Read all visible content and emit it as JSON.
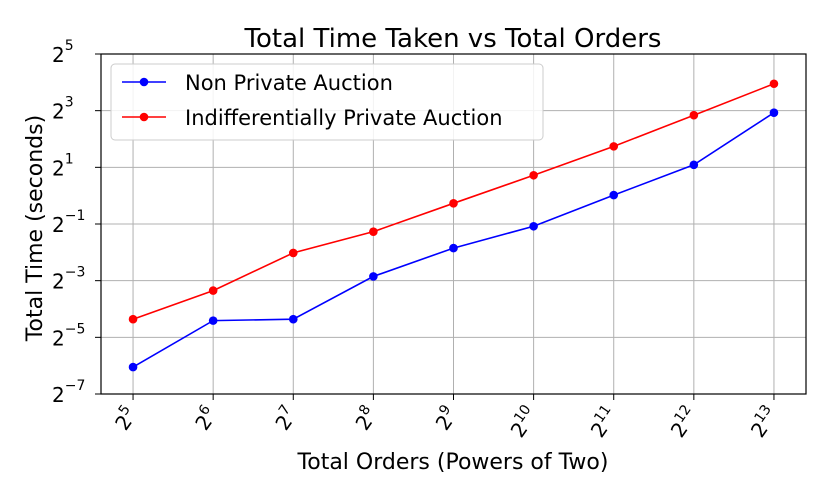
{
  "chart_data": {
    "type": "line",
    "title": "Total Time Taken vs Total Orders",
    "xlabel": "Total Orders (Powers of Two)",
    "ylabel": "Total Time (seconds)",
    "x_scale": "log2",
    "y_scale": "log2",
    "x": [
      32,
      64,
      128,
      256,
      512,
      1024,
      2048,
      4096,
      8192
    ],
    "x_tick_labels": [
      {
        "base": "2",
        "exp": "5"
      },
      {
        "base": "2",
        "exp": "6"
      },
      {
        "base": "2",
        "exp": "7"
      },
      {
        "base": "2",
        "exp": "8"
      },
      {
        "base": "2",
        "exp": "9"
      },
      {
        "base": "2",
        "exp": "10"
      },
      {
        "base": "2",
        "exp": "11"
      },
      {
        "base": "2",
        "exp": "12"
      },
      {
        "base": "2",
        "exp": "13"
      }
    ],
    "y_ticks": [
      -7,
      -5,
      -3,
      -1,
      1,
      3,
      5
    ],
    "y_tick_labels": [
      {
        "base": "2",
        "exp": "−7"
      },
      {
        "base": "2",
        "exp": "−5"
      },
      {
        "base": "2",
        "exp": "−3"
      },
      {
        "base": "2",
        "exp": "−1"
      },
      {
        "base": "2",
        "exp": "1"
      },
      {
        "base": "2",
        "exp": "3"
      },
      {
        "base": "2",
        "exp": "5"
      }
    ],
    "ylim_log2": [
      -7,
      5
    ],
    "xlim_log2": [
      4.6,
      13.4
    ],
    "grid": true,
    "legend_position": "top-left",
    "series": [
      {
        "name": "Non Private Auction",
        "color": "#0000ff",
        "values_log2": [
          -6.05,
          -4.41,
          -4.36,
          -2.85,
          -1.85,
          -1.08,
          0.02,
          1.09,
          2.93
        ]
      },
      {
        "name": "Indifferentially Private Auction",
        "color": "#ff0000",
        "values_log2": [
          -4.36,
          -3.35,
          -2.02,
          -1.27,
          -0.27,
          0.72,
          1.74,
          2.84,
          3.95
        ]
      }
    ]
  }
}
